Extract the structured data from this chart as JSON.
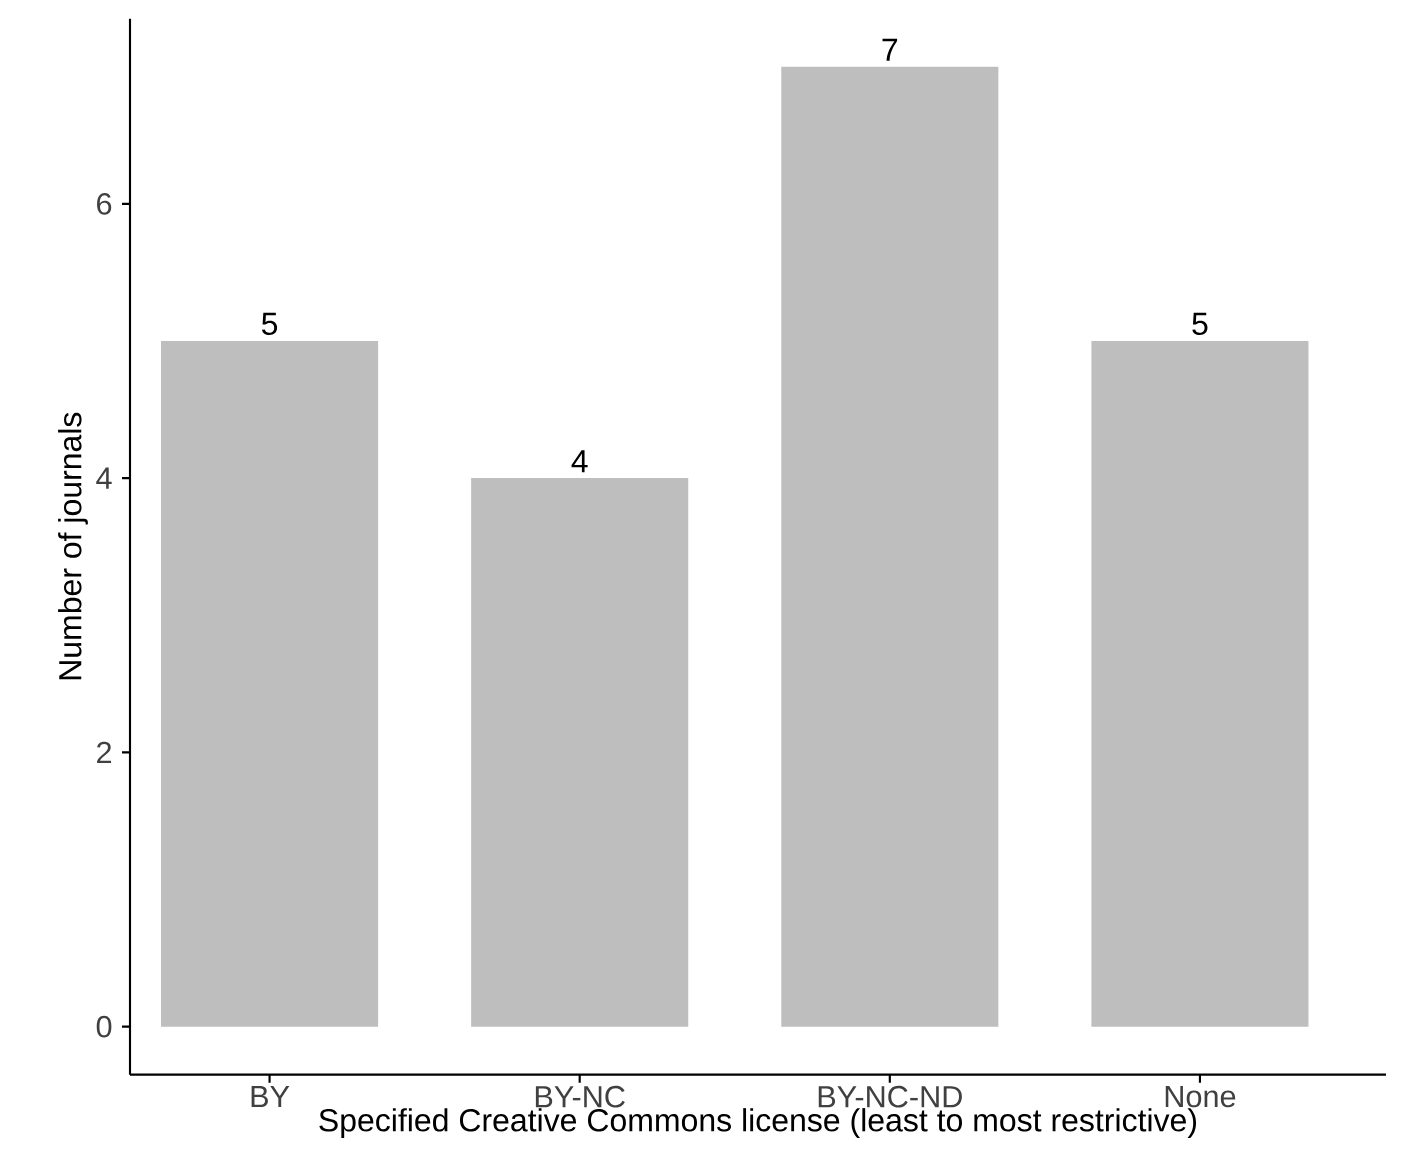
{
  "chart_data": {
    "type": "bar",
    "xlabel": "Specified Creative Commons license (least to most restrictive)",
    "ylabel": "Number of journals",
    "categories": [
      "BY",
      "BY-NC",
      "BY-NC-ND",
      "None"
    ],
    "values": [
      5,
      4,
      7,
      5
    ],
    "color": "#bebebe",
    "ylim": [
      -0.35,
      7.35
    ],
    "yticks": [
      0,
      2,
      4,
      6
    ],
    "data_labels": true
  }
}
